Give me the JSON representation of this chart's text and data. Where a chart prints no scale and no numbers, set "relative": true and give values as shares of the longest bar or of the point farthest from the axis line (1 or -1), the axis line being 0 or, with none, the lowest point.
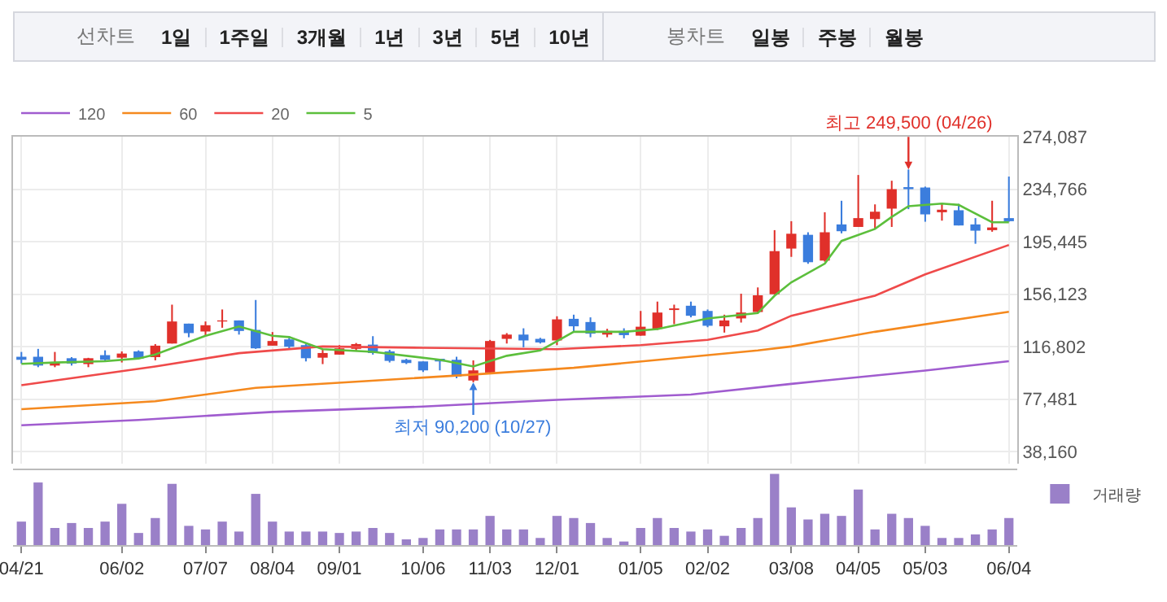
{
  "chart_data": [
    {
      "type": "other",
      "annotations": [
        "선차트",
        "1일",
        "1주일",
        "3개월",
        "1년",
        "3년",
        "5년",
        "10년",
        "봉차트",
        "일봉",
        "주봉",
        "월봉"
      ]
    },
    {
      "type": "candlestick",
      "categories": [
        null,
        null,
        null,
        null,
        null,
        null,
        null,
        null,
        null,
        null,
        null,
        null,
        null,
        null,
        null,
        null,
        null,
        null,
        null,
        null,
        null,
        null,
        null,
        null,
        null,
        null,
        null,
        null,
        null,
        null,
        null,
        null,
        null,
        null,
        null,
        null,
        null,
        null,
        null,
        null,
        null,
        null,
        null,
        null,
        null,
        null,
        null,
        null,
        null,
        null,
        null,
        null,
        null,
        null,
        null,
        null,
        null,
        null,
        null,
        null
      ],
      "ylim": [
        28000,
        274087
      ],
      "yticks": [
        {
          "value": 38160,
          "label": "38,160"
        },
        {
          "value": 77481,
          "label": "77,481"
        },
        {
          "value": 116802,
          "label": "116,802"
        },
        {
          "value": 156123,
          "label": "156,123"
        },
        {
          "value": 195445,
          "label": "195,445"
        },
        {
          "value": 234766,
          "label": "234,766"
        },
        {
          "value": 274087,
          "label": "274,087"
        }
      ],
      "tick_labels": "y",
      "grid": true,
      "legend": "top left",
      "annotations": [
        {
          "text": "최고 249,500 (04/26)",
          "y": 249500
        },
        {
          "text": "최저 90,200 (10/27)",
          "y": 90200
        }
      ],
      "series": [
        {
          "type": "candlestick",
          "colors": [
            "#3b7ddd",
            "#3b7ddd",
            "#e0302a",
            "#3b7ddd",
            "#e0302a",
            "#3b7ddd",
            "#e0302a",
            "#3b7ddd",
            "#e0302a",
            "#e0302a",
            "#3b7ddd",
            "#e0302a",
            "#e0302a",
            "#3b7ddd",
            "#3b7ddd",
            "#e0302a",
            "#3b7ddd",
            "#3b7ddd",
            "#e0302a",
            "#e0302a",
            "#e0302a",
            "#3b7ddd",
            "#3b7ddd",
            "#3b7ddd",
            "#3b7ddd",
            "#3b7ddd",
            "#3b7ddd",
            "#e0302a",
            "#e0302a",
            "#e0302a",
            "#3b7ddd",
            "#3b7ddd",
            "#e0302a",
            "#3b7ddd",
            "#3b7ddd",
            "#e0302a",
            "#3b7ddd",
            "#e0302a",
            "#e0302a",
            "#e0302a",
            "#3b7ddd",
            "#3b7ddd",
            "#e0302a",
            "#e0302a",
            "#e0302a",
            "#e0302a",
            "#e0302a",
            "#3b7ddd",
            "#e0302a",
            "#3b7ddd",
            "#e0302a",
            "#e0302a",
            "#e0302a",
            "#3b7ddd",
            "#3b7ddd",
            "#e0302a",
            "#3b7ddd",
            "#3b7ddd",
            "#e0302a",
            "#3b7ddd"
          ],
          "ohlc": [
            [
              109300,
              112900,
              104200,
              107000
            ],
            [
              109300,
              115200,
              101500,
              102700
            ],
            [
              102700,
              112900,
              101500,
              105400
            ],
            [
              108200,
              109000,
              102700,
              104200
            ],
            [
              103800,
              108500,
              101500,
              108200
            ],
            [
              110500,
              114100,
              106200,
              107000
            ],
            [
              108600,
              113300,
              105000,
              111700
            ],
            [
              113300,
              114100,
              107400,
              107800
            ],
            [
              109000,
              118800,
              106600,
              117600
            ],
            [
              119200,
              148300,
              119200,
              135700
            ],
            [
              134100,
              134100,
              123900,
              127000
            ],
            [
              128200,
              135700,
              125100,
              132900
            ],
            [
              135700,
              144700,
              131000,
              136500
            ],
            [
              136500,
              136500,
              125900,
              128600
            ],
            [
              129400,
              151800,
              115200,
              115600
            ],
            [
              117600,
              127800,
              117600,
              121100
            ],
            [
              122300,
              124700,
              114500,
              116800
            ],
            [
              118000,
              118800,
              105800,
              108200
            ],
            [
              108600,
              115200,
              103800,
              112100
            ],
            [
              110900,
              118000,
              110900,
              115600
            ],
            [
              115200,
              119600,
              113300,
              118800
            ],
            [
              118400,
              124700,
              110900,
              112100
            ],
            [
              113300,
              114500,
              105000,
              106200
            ],
            [
              107000,
              107800,
              103800,
              104600
            ],
            [
              105800,
              105800,
              97900,
              99100
            ],
            [
              107800,
              107800,
              99100,
              105800
            ],
            [
              107000,
              109300,
              93200,
              94400
            ],
            [
              91500,
              106600,
              90200,
              99100
            ],
            [
              97500,
              121900,
              97500,
              121100
            ],
            [
              122700,
              127000,
              119200,
              125900
            ],
            [
              125900,
              130600,
              116400,
              121500
            ],
            [
              122700,
              123500,
              119200,
              120000
            ],
            [
              121500,
              139600,
              118000,
              137300
            ],
            [
              137700,
              140800,
              127800,
              132100
            ],
            [
              135300,
              138800,
              123900,
              126600
            ],
            [
              125900,
              130200,
              123900,
              128600
            ],
            [
              128600,
              130600,
              123100,
              125500
            ],
            [
              125100,
              143600,
              125100,
              131800
            ],
            [
              130200,
              150600,
              129400,
              142400
            ],
            [
              144300,
              148300,
              133700,
              145500
            ],
            [
              147500,
              150600,
              138800,
              140000
            ],
            [
              143600,
              144700,
              131400,
              132500
            ],
            [
              132100,
              140800,
              127400,
              136500
            ],
            [
              138000,
              156500,
              134900,
              142400
            ],
            [
              142800,
              161200,
              142400,
              155300
            ],
            [
              156100,
              204100,
              156100,
              188400
            ],
            [
              190300,
              210800,
              184100,
              201400
            ],
            [
              200600,
              202500,
              178900,
              180100
            ],
            [
              181300,
              217500,
              180500,
              202500
            ],
            [
              208400,
              226100,
              201700,
              203300
            ],
            [
              206500,
              245400,
              206500,
              213100
            ],
            [
              212400,
              223400,
              204900,
              217900
            ],
            [
              220200,
              241100,
              206500,
              234800
            ],
            [
              236300,
              249500,
              219800,
              234800
            ],
            [
              236000,
              236700,
              210400,
              215900
            ],
            [
              217500,
              223800,
              211200,
              219400
            ],
            [
              219000,
              223800,
              207600,
              207600
            ],
            [
              208400,
              213100,
              193900,
              203700
            ],
            [
              204100,
              226100,
              202900,
              206100
            ],
            [
              213100,
              244200,
              210400,
              210800
            ]
          ]
        },
        {
          "type": "line",
          "name": "5",
          "color": "#5cbf3c",
          "values": [
            104000,
            null,
            105000,
            null,
            null,
            106000,
            null,
            108000,
            111000,
            null,
            null,
            125000,
            null,
            132000,
            null,
            125000,
            124000,
            null,
            115000,
            null,
            null,
            113000,
            null,
            null,
            null,
            107000,
            null,
            102000,
            null,
            110000,
            null,
            114000,
            121000,
            128000,
            null,
            null,
            128000,
            null,
            130000,
            null,
            null,
            138000,
            null,
            null,
            142000,
            155000,
            165000,
            null,
            179000,
            196000,
            null,
            205000,
            214000,
            222000,
            null,
            224000,
            223000,
            null,
            210000,
            210000
          ]
        },
        {
          "type": "line",
          "name": "20",
          "color": "#ef4a4a",
          "values": [
            88000,
            null,
            null,
            null,
            null,
            null,
            null,
            null,
            102000,
            null,
            null,
            null,
            null,
            112000,
            null,
            null,
            null,
            null,
            117000,
            null,
            null,
            null,
            null,
            null,
            116000,
            null,
            null,
            null,
            null,
            null,
            null,
            null,
            115000,
            null,
            null,
            null,
            null,
            118000,
            null,
            null,
            null,
            122000,
            null,
            null,
            129000,
            null,
            140000,
            null,
            null,
            null,
            null,
            155000,
            null,
            null,
            171000,
            null,
            null,
            null,
            null,
            193000
          ]
        },
        {
          "type": "line",
          "name": "60",
          "color": "#f5891e",
          "values": [
            70000,
            null,
            null,
            null,
            null,
            null,
            null,
            null,
            76000,
            null,
            null,
            null,
            null,
            null,
            86000,
            null,
            null,
            null,
            null,
            null,
            null,
            null,
            null,
            null,
            null,
            null,
            null,
            96000,
            null,
            null,
            null,
            null,
            null,
            101000,
            null,
            null,
            null,
            null,
            null,
            null,
            null,
            null,
            null,
            null,
            114000,
            null,
            117000,
            null,
            null,
            null,
            null,
            128000,
            null,
            null,
            null,
            null,
            null,
            null,
            null,
            143000
          ]
        },
        {
          "type": "line",
          "name": "120",
          "color": "#a05ccf",
          "values": [
            58000,
            null,
            null,
            null,
            null,
            null,
            null,
            62000,
            null,
            null,
            null,
            null,
            null,
            null,
            null,
            68000,
            null,
            null,
            null,
            null,
            null,
            null,
            null,
            null,
            72000,
            null,
            null,
            null,
            null,
            null,
            null,
            null,
            77000,
            null,
            null,
            null,
            null,
            null,
            null,
            null,
            81000,
            null,
            null,
            null,
            null,
            null,
            89000,
            null,
            null,
            null,
            null,
            null,
            null,
            null,
            99000,
            null,
            null,
            null,
            null,
            106000
          ]
        }
      ]
    },
    {
      "type": "bar",
      "relative": true,
      "tick_labels": "x",
      "legend": "top right",
      "categories": [
        "04/21",
        null,
        null,
        null,
        null,
        null,
        "06/02",
        null,
        null,
        null,
        null,
        "07/07",
        null,
        null,
        null,
        "08/04",
        null,
        null,
        null,
        "09/01",
        null,
        null,
        null,
        null,
        "10/06",
        null,
        null,
        null,
        "11/03",
        null,
        null,
        null,
        "12/01",
        null,
        null,
        null,
        null,
        "01/05",
        null,
        null,
        null,
        "02/02",
        null,
        null,
        null,
        null,
        "03/08",
        null,
        null,
        null,
        "04/05",
        null,
        null,
        null,
        "05/03",
        null,
        null,
        null,
        null,
        "06/04"
      ],
      "series": [
        {
          "name": "거래량",
          "color": "#9a80c8",
          "values": [
            0.33,
            0.88,
            0.24,
            0.31,
            0.24,
            0.33,
            0.58,
            0.17,
            0.38,
            0.86,
            0.27,
            0.22,
            0.33,
            0.19,
            0.72,
            0.33,
            0.19,
            0.19,
            0.19,
            0.17,
            0.19,
            0.24,
            0.17,
            0.08,
            0.1,
            0.22,
            0.22,
            0.22,
            0.41,
            0.22,
            0.22,
            0.1,
            0.41,
            0.38,
            0.31,
            0.1,
            0.05,
            0.24,
            0.38,
            0.24,
            0.19,
            0.22,
            0.13,
            0.24,
            0.38,
            1,
            0.53,
            0.36,
            0.44,
            0.41,
            0.78,
            0.22,
            0.44,
            0.38,
            0.27,
            0.1,
            0.1,
            0.15,
            0.22,
            0.38
          ]
        }
      ]
    }
  ]
}
